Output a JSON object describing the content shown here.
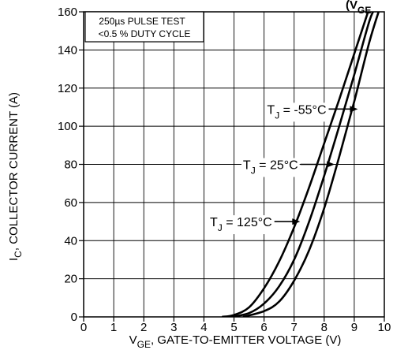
{
  "chart_data": {
    "type": "line",
    "title_fragment": "(V",
    "title_fragment_sub": "GE",
    "xlabel": {
      "main": "V",
      "sub": "GE",
      "rest": ", GATE-TO-EMITTER VOLTAGE (V)"
    },
    "ylabel": {
      "main": "I",
      "sub": "C",
      "rest": ", COLLECTOR CURRENT (A)"
    },
    "xlim": [
      0,
      10
    ],
    "ylim": [
      0,
      160
    ],
    "xticks": [
      "0",
      "1",
      "2",
      "3",
      "4",
      "5",
      "6",
      "7",
      "8",
      "9",
      "10"
    ],
    "yticks": [
      "0",
      "20",
      "40",
      "60",
      "80",
      "100",
      "120",
      "140",
      "160"
    ],
    "grid": true,
    "note_lines": [
      "250µs PULSE TEST",
      "<0.5 % DUTY CYCLE"
    ],
    "series": [
      {
        "name": "T_J = -55°C",
        "label_main": "T",
        "label_sub": "J",
        "label_rest": " = -55°C",
        "x": [
          4.6,
          5.0,
          5.5,
          6.0,
          6.5,
          7.0,
          7.5,
          8.0,
          8.5,
          9.0,
          9.5
        ],
        "y": [
          0,
          1,
          5,
          15,
          29,
          47,
          68,
          91,
          114,
          138,
          162
        ]
      },
      {
        "name": "T_J = 25°C",
        "label_main": "T",
        "label_sub": "J",
        "label_rest": " = 25°C",
        "x": [
          4.9,
          5.5,
          6.0,
          6.5,
          7.0,
          7.5,
          8.0,
          8.5,
          9.0,
          9.5,
          9.7
        ],
        "y": [
          0,
          2,
          7,
          16,
          30,
          50,
          74,
          100,
          127,
          155,
          162
        ]
      },
      {
        "name": "T_J = 125°C",
        "label_main": "T",
        "label_sub": "J",
        "label_rest": " = 125°C",
        "x": [
          5.3,
          6.0,
          6.5,
          7.0,
          7.5,
          8.0,
          8.5,
          9.0,
          9.5,
          9.85
        ],
        "y": [
          0,
          3,
          8,
          19,
          35,
          57,
          84,
          113,
          144,
          162
        ]
      }
    ],
    "annotations": [
      {
        "series": 0,
        "text_x": 6.1,
        "text_y": 109,
        "arrow_to_x": 9.12,
        "arrow_to_y": 109
      },
      {
        "series": 1,
        "text_x": 5.3,
        "text_y": 80,
        "arrow_to_x": 8.35,
        "arrow_to_y": 80
      },
      {
        "series": 2,
        "text_x": 4.2,
        "text_y": 50,
        "arrow_to_x": 7.2,
        "arrow_to_y": 50
      }
    ]
  }
}
